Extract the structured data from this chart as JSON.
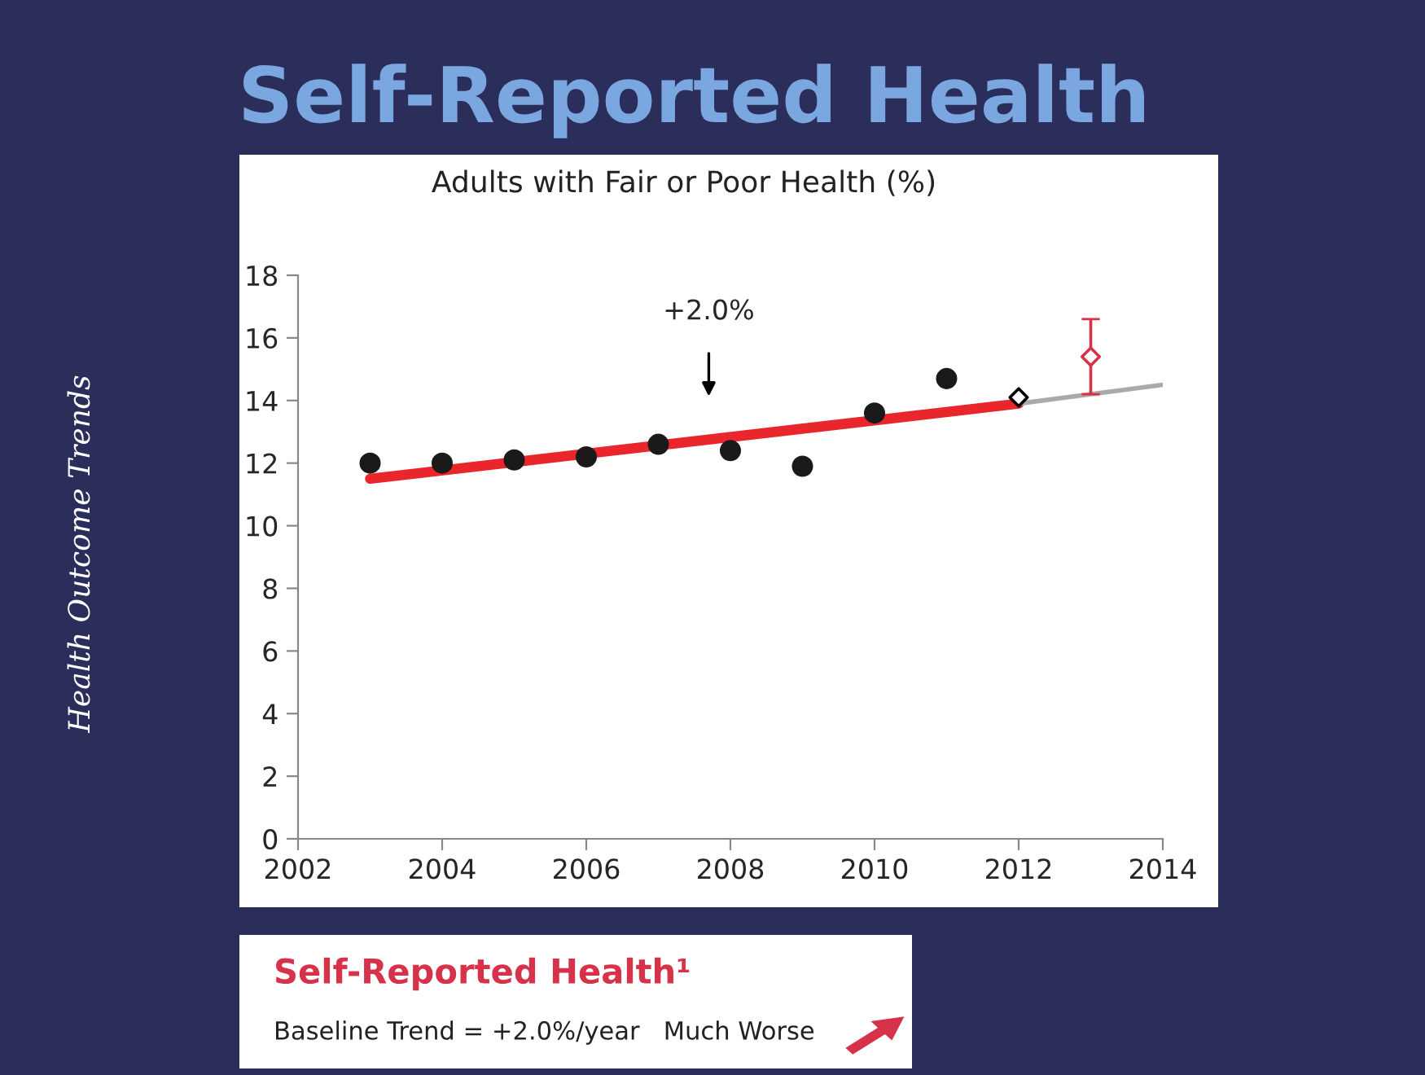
{
  "chart_data": {
    "type": "scatter",
    "title": "Self-Reported Health",
    "subtitle": "Adults with Fair or Poor Health (%)",
    "xlim": [
      2002,
      2014
    ],
    "xticks": [
      2002,
      2004,
      2006,
      2008,
      2010,
      2012,
      2014
    ],
    "ylim": [
      0,
      18
    ],
    "yticks": [
      0,
      2,
      4,
      6,
      8,
      10,
      12,
      14,
      16,
      18
    ],
    "grid": false,
    "legend": false,
    "series": [
      {
        "marker": "circle",
        "color": "#1a1a1a",
        "x": [
          2003,
          2004,
          2005,
          2006,
          2007,
          2008,
          2009,
          2010,
          2011
        ],
        "values": [
          12.0,
          12.0,
          12.1,
          12.2,
          12.6,
          12.4,
          11.9,
          13.6,
          14.7
        ]
      },
      {
        "type": "line",
        "color": "#e8262b",
        "x": [
          2003,
          2012
        ],
        "values": [
          11.5,
          13.9
        ]
      },
      {
        "type": "line",
        "color": "#aaaaaa",
        "x": [
          2012,
          2014
        ],
        "values": [
          13.9,
          14.5
        ]
      },
      {
        "marker": "diamond",
        "color": "#000000",
        "x": [
          2012
        ],
        "values": [
          14.1
        ]
      },
      {
        "marker": "diamond",
        "color": "#d6324a",
        "x": [
          2013
        ],
        "values": [
          15.4
        ],
        "errors": [
          [
            14.2,
            16.6
          ]
        ]
      }
    ],
    "annotations": [
      "+2.0%",
      "Health Outcome Trends",
      "Self-Reported Health¹",
      "Baseline Trend = +2.0%/year   Much Worse"
    ]
  }
}
